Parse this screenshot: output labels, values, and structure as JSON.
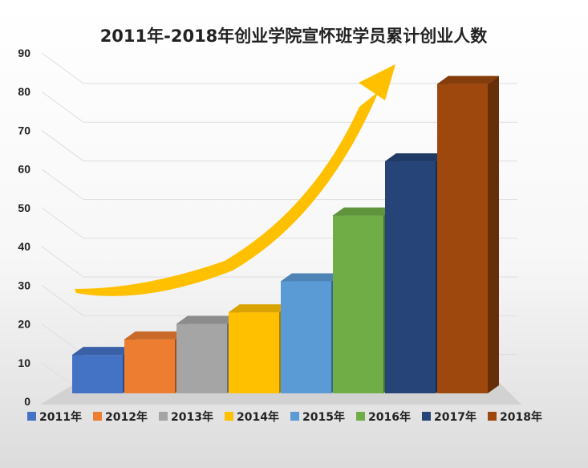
{
  "chart_data": {
    "type": "bar",
    "title": "2011年-2018年创业学院宣怀班学员累计创业人数",
    "categories": [
      "2011年",
      "2012年",
      "2013年",
      "2014年",
      "2015年",
      "2016年",
      "2017年",
      "2018年"
    ],
    "values": [
      12,
      16,
      20,
      23,
      31,
      48,
      62,
      82
    ],
    "ylim": [
      0,
      90
    ],
    "yticks": [
      "0",
      "10",
      "20",
      "30",
      "40",
      "50",
      "60",
      "70",
      "80",
      "90"
    ],
    "legend_position": "bottom",
    "grid": true,
    "colors": [
      "#4472C4",
      "#ED7D31",
      "#A5A5A5",
      "#FFC000",
      "#5B9BD5",
      "#70AD47",
      "#264478",
      "#9E480E"
    ],
    "arrow_color": "#FFC000"
  }
}
